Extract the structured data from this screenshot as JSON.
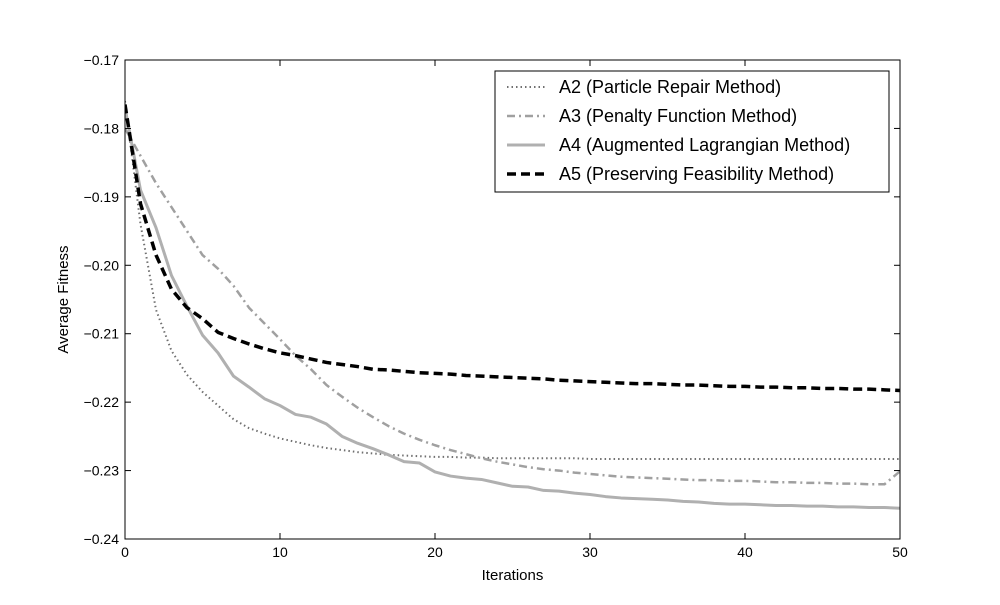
{
  "chart_data": {
    "type": "line",
    "title": "",
    "xlabel": "Iterations",
    "ylabel": "Average Fitness",
    "xlim": [
      0,
      50
    ],
    "ylim": [
      -0.24,
      -0.17
    ],
    "xticks": [
      0,
      10,
      20,
      30,
      40,
      50
    ],
    "yticks": [
      -0.17,
      -0.18,
      -0.19,
      -0.2,
      -0.21,
      -0.22,
      -0.23,
      -0.24
    ],
    "xtick_labels": [
      "0",
      "10",
      "20",
      "30",
      "40",
      "50"
    ],
    "ytick_labels": [
      "−0.17",
      "−0.18",
      "−0.19",
      "−0.20",
      "−0.21",
      "−0.22",
      "−0.23",
      "−0.24"
    ],
    "grid": false,
    "legend_position": "top-right",
    "x": [
      0,
      1,
      2,
      3,
      4,
      5,
      6,
      7,
      8,
      9,
      10,
      11,
      12,
      13,
      14,
      15,
      16,
      17,
      18,
      19,
      20,
      21,
      22,
      23,
      24,
      25,
      26,
      27,
      28,
      29,
      30,
      31,
      32,
      33,
      34,
      35,
      36,
      37,
      38,
      39,
      40,
      41,
      42,
      43,
      44,
      45,
      46,
      47,
      48,
      49,
      50
    ],
    "series": [
      {
        "name": "A2 (Particle Repair Method)",
        "color": "#707070",
        "style": "dotted",
        "values": [
          -0.176,
          -0.194,
          -0.2065,
          -0.2125,
          -0.216,
          -0.2185,
          -0.2205,
          -0.2225,
          -0.2238,
          -0.2246,
          -0.2253,
          -0.2258,
          -0.2263,
          -0.2267,
          -0.227,
          -0.2273,
          -0.2275,
          -0.2277,
          -0.2278,
          -0.2279,
          -0.228,
          -0.228,
          -0.2281,
          -0.2281,
          -0.2282,
          -0.2282,
          -0.2282,
          -0.2282,
          -0.2282,
          -0.2282,
          -0.2283,
          -0.2283,
          -0.2283,
          -0.2283,
          -0.2283,
          -0.2283,
          -0.2283,
          -0.2283,
          -0.2283,
          -0.2283,
          -0.2283,
          -0.2283,
          -0.2283,
          -0.2283,
          -0.2283,
          -0.2283,
          -0.2283,
          -0.2283,
          -0.2283,
          -0.2283,
          -0.2283
        ]
      },
      {
        "name": "A3 (Penalty Function Method)",
        "color": "#a0a0a0",
        "style": "dashdot",
        "values": [
          -0.18,
          -0.184,
          -0.188,
          -0.1915,
          -0.195,
          -0.1985,
          -0.2005,
          -0.203,
          -0.2062,
          -0.2085,
          -0.2108,
          -0.2132,
          -0.2152,
          -0.2175,
          -0.2192,
          -0.2208,
          -0.2222,
          -0.2235,
          -0.2246,
          -0.2255,
          -0.2263,
          -0.227,
          -0.2276,
          -0.2282,
          -0.2287,
          -0.2291,
          -0.2295,
          -0.2298,
          -0.23,
          -0.2303,
          -0.2305,
          -0.2307,
          -0.2309,
          -0.231,
          -0.2311,
          -0.2312,
          -0.2313,
          -0.2314,
          -0.2314,
          -0.2315,
          -0.2315,
          -0.2316,
          -0.2317,
          -0.2317,
          -0.2318,
          -0.2318,
          -0.2319,
          -0.2319,
          -0.232,
          -0.232,
          -0.2301
        ]
      },
      {
        "name": "A4 (Augmented Lagrangian Method)",
        "color": "#b0b0b0",
        "style": "solid",
        "values": [
          -0.177,
          -0.189,
          -0.1945,
          -0.2015,
          -0.206,
          -0.2102,
          -0.2128,
          -0.2162,
          -0.2178,
          -0.2195,
          -0.2205,
          -0.2218,
          -0.2222,
          -0.2232,
          -0.225,
          -0.226,
          -0.2268,
          -0.2277,
          -0.2287,
          -0.2289,
          -0.2302,
          -0.2308,
          -0.2311,
          -0.2313,
          -0.2318,
          -0.2323,
          -0.2324,
          -0.2329,
          -0.233,
          -0.2333,
          -0.2335,
          -0.2338,
          -0.234,
          -0.2341,
          -0.2342,
          -0.2343,
          -0.2345,
          -0.2346,
          -0.2348,
          -0.2349,
          -0.2349,
          -0.235,
          -0.2351,
          -0.2351,
          -0.2352,
          -0.2352,
          -0.2353,
          -0.2353,
          -0.2354,
          -0.2354,
          -0.2355
        ]
      },
      {
        "name": "A5 (Preserving Feasibility Method)",
        "color": "#000000",
        "style": "dashed",
        "values": [
          -0.1765,
          -0.191,
          -0.1985,
          -0.2035,
          -0.2062,
          -0.2078,
          -0.2098,
          -0.2107,
          -0.2115,
          -0.2122,
          -0.2128,
          -0.2132,
          -0.2137,
          -0.2142,
          -0.2145,
          -0.2148,
          -0.2152,
          -0.2153,
          -0.2155,
          -0.2157,
          -0.2158,
          -0.2159,
          -0.2161,
          -0.2162,
          -0.2163,
          -0.2164,
          -0.2165,
          -0.2166,
          -0.2168,
          -0.2169,
          -0.217,
          -0.2171,
          -0.2172,
          -0.2173,
          -0.2173,
          -0.2174,
          -0.2175,
          -0.2175,
          -0.2176,
          -0.2177,
          -0.2177,
          -0.2178,
          -0.2178,
          -0.2179,
          -0.2179,
          -0.218,
          -0.218,
          -0.2181,
          -0.2181,
          -0.2182,
          -0.2183
        ]
      }
    ]
  }
}
